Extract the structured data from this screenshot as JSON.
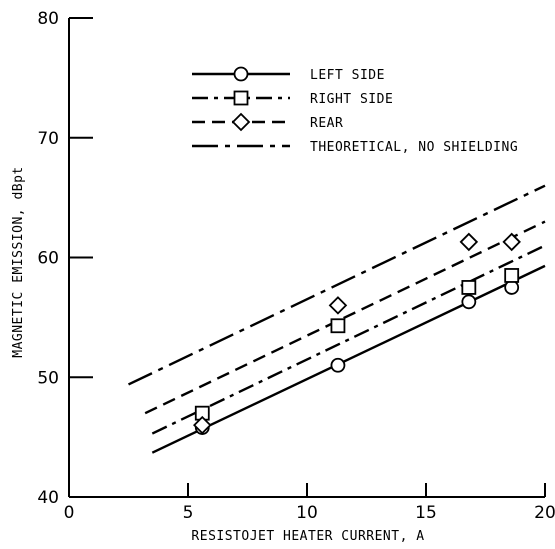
{
  "chart_data": {
    "type": "line",
    "xlabel": "RESISTOJET HEATER CURRENT, A",
    "ylabel": "MAGNETIC EMISSION, dBpt",
    "xlim": [
      0,
      20
    ],
    "ylim": [
      40,
      80
    ],
    "x_ticks": [
      0,
      5,
      10,
      15,
      20
    ],
    "y_ticks": [
      40,
      50,
      60,
      70,
      80
    ],
    "grid": false,
    "legend_position": "top-right",
    "series": [
      {
        "name": "LEFT SIDE",
        "line_style": "solid",
        "marker": "circle",
        "points": [
          {
            "x": 5.6,
            "y": 45.8
          },
          {
            "x": 11.3,
            "y": 51.0
          },
          {
            "x": 16.8,
            "y": 56.3
          },
          {
            "x": 18.6,
            "y": 57.5
          }
        ],
        "fit": [
          {
            "x": 3.5,
            "y": 43.7
          },
          {
            "x": 20.0,
            "y": 59.3
          }
        ]
      },
      {
        "name": "RIGHT SIDE",
        "line_style": "dash-dot",
        "marker": "square",
        "points": [
          {
            "x": 5.6,
            "y": 47.0
          },
          {
            "x": 11.3,
            "y": 54.3
          },
          {
            "x": 16.8,
            "y": 57.5
          },
          {
            "x": 18.6,
            "y": 58.5
          }
        ],
        "fit": [
          {
            "x": 3.5,
            "y": 45.3
          },
          {
            "x": 20.0,
            "y": 61.0
          }
        ]
      },
      {
        "name": "REAR",
        "line_style": "dashed",
        "marker": "diamond",
        "points": [
          {
            "x": 5.6,
            "y": 46.0
          },
          {
            "x": 11.3,
            "y": 56.0
          },
          {
            "x": 16.8,
            "y": 61.3
          },
          {
            "x": 18.6,
            "y": 61.3
          }
        ],
        "fit": [
          {
            "x": 3.2,
            "y": 47.0
          },
          {
            "x": 20.0,
            "y": 63.0
          }
        ]
      },
      {
        "name": "THEORETICAL, NO SHIELDING",
        "line_style": "long-dash-dot",
        "marker": "none",
        "points": [],
        "fit": [
          {
            "x": 2.5,
            "y": 49.4
          },
          {
            "x": 20.0,
            "y": 66.0
          }
        ]
      }
    ]
  }
}
